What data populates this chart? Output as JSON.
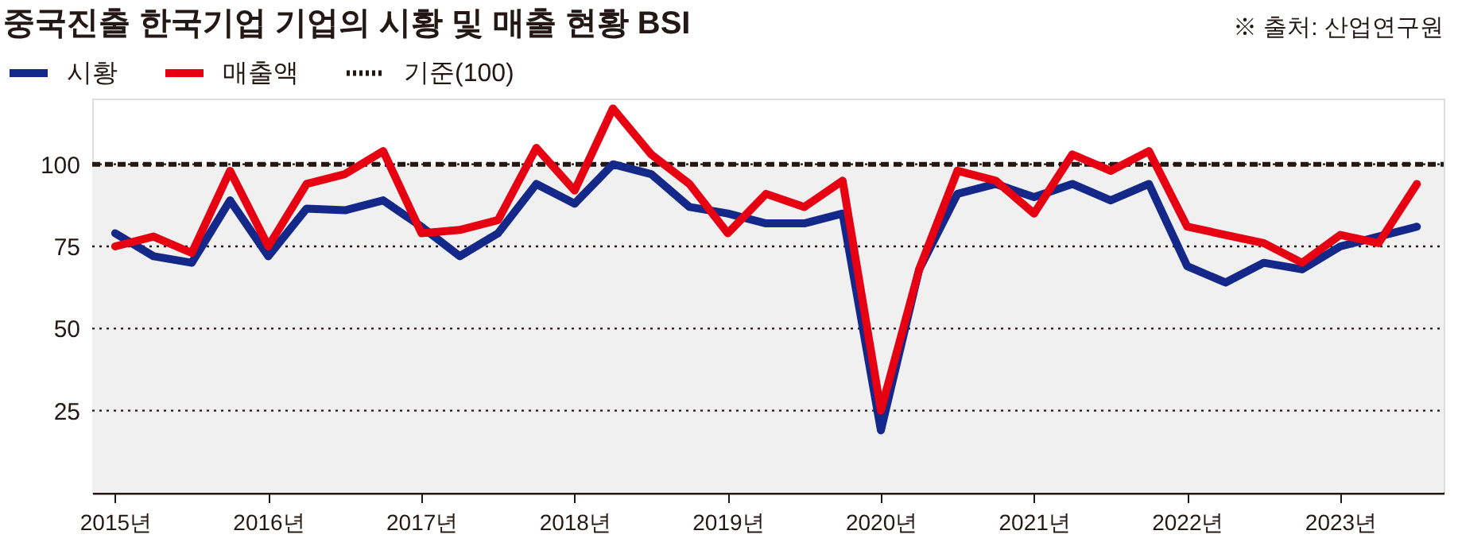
{
  "chart_data": {
    "type": "line",
    "title": "중국진출 한국기업 기업의 시황 및 매출 현황 BSI",
    "annotations": [
      "※ 출처: 산업연구원"
    ],
    "categories": [
      "2015년",
      null,
      null,
      null,
      "2016년",
      null,
      null,
      null,
      "2017년",
      null,
      null,
      null,
      "2018년",
      null,
      null,
      null,
      "2019년",
      null,
      null,
      null,
      "2020년",
      null,
      null,
      null,
      "2021년",
      null,
      null,
      null,
      "2022년",
      null,
      null,
      null,
      "2023년",
      null,
      null
    ],
    "series": [
      {
        "name": "시황",
        "color": "#14288a",
        "values": [
          79,
          72,
          70,
          89,
          72,
          86.5,
          86,
          89,
          81,
          72,
          79,
          94,
          88,
          100,
          97,
          87,
          85,
          82,
          82,
          85,
          19,
          68,
          91,
          94,
          90,
          94,
          89,
          94,
          69,
          64,
          70,
          68,
          75,
          78,
          81
        ]
      },
      {
        "name": "매출액",
        "color": "#e60012",
        "values": [
          75,
          78,
          73,
          98,
          75,
          94,
          97,
          104,
          79,
          80,
          83,
          105,
          92,
          117,
          103,
          94,
          79,
          91,
          87,
          95,
          25,
          68,
          98,
          95,
          85,
          103,
          98,
          104,
          81,
          78.5,
          76,
          70,
          78.5,
          76,
          94
        ]
      }
    ],
    "ref_lines": [
      {
        "axis": "y",
        "value": 100,
        "label": "기준(100)",
        "color": "#231815",
        "line_style": "dashed"
      }
    ],
    "bands": [
      {
        "axis": "y",
        "from": 0,
        "to": 100,
        "color": "#f0f0f0"
      }
    ],
    "ylim": [
      0,
      120
    ],
    "yticks": [
      25,
      50,
      75,
      100
    ],
    "grid": "y",
    "legend": "top left",
    "line_style": "solid",
    "marker": "none"
  }
}
